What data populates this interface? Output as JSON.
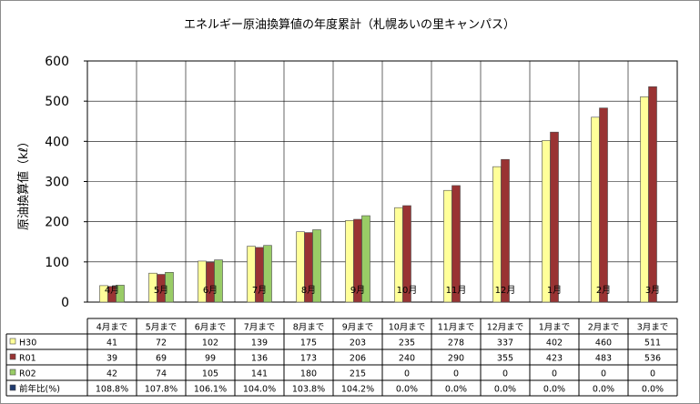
{
  "chart_data": {
    "type": "bar",
    "title": "エネルギー原油換算値の年度累計（札幌あいの里キャンパス）",
    "ylabel": "原油換算値（kℓ）",
    "ylim": [
      0,
      600
    ],
    "yticks": [
      "0",
      "100",
      "200",
      "300",
      "400",
      "500",
      "600"
    ],
    "months": [
      "4月",
      "5月",
      "6月",
      "7月",
      "8月",
      "9月",
      "10月",
      "11月",
      "12月",
      "1月",
      "2月",
      "3月"
    ],
    "categories": [
      "4月まで",
      "5月まで",
      "6月まで",
      "7月まで",
      "8月まで",
      "9月まで",
      "10月まで",
      "11月まで",
      "12月まで",
      "1月まで",
      "2月まで",
      "3月まで"
    ],
    "series": [
      {
        "name": "H30",
        "color": "#ffff99",
        "values": [
          41,
          72,
          102,
          139,
          175,
          203,
          235,
          278,
          337,
          402,
          460,
          511
        ]
      },
      {
        "name": "R01",
        "color": "#993333",
        "values": [
          39,
          69,
          99,
          136,
          173,
          206,
          240,
          290,
          355,
          423,
          483,
          536
        ]
      },
      {
        "name": "R02",
        "color": "#99cc66",
        "values": [
          42,
          74,
          105,
          141,
          180,
          215,
          0,
          0,
          0,
          0,
          0,
          0
        ]
      }
    ],
    "ratio_row": {
      "name": "前年比(%)",
      "color": "#1f3a6e",
      "values": [
        "108.8%",
        "107.8%",
        "106.1%",
        "104.0%",
        "103.8%",
        "104.2%",
        "0.0%",
        "0.0%",
        "0.0%",
        "0.0%",
        "0.0%",
        "0.0%"
      ]
    }
  }
}
